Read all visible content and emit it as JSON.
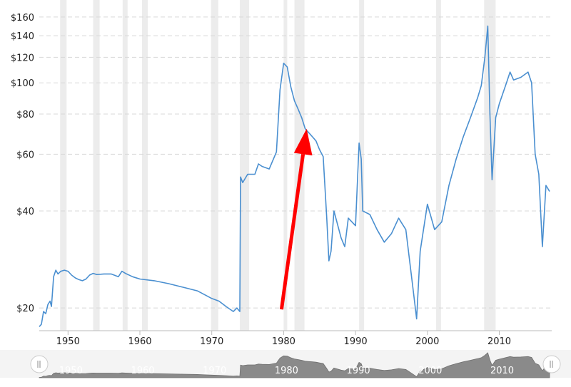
{
  "chart_data": {
    "type": "line",
    "title": "",
    "xlabel": "",
    "ylabel": "",
    "yscale": "log",
    "ylim": [
      17,
      170
    ],
    "xlim": [
      1946,
      2017.3
    ],
    "y_ticks": [
      {
        "value": 20,
        "label": "$20"
      },
      {
        "value": 40,
        "label": "$40"
      },
      {
        "value": 60,
        "label": "$60"
      },
      {
        "value": 80,
        "label": "$80"
      },
      {
        "value": 100,
        "label": "$100"
      },
      {
        "value": 120,
        "label": "$120"
      },
      {
        "value": 140,
        "label": "$140"
      },
      {
        "value": 160,
        "label": "$160"
      }
    ],
    "x_ticks": [
      {
        "value": 1950,
        "label": "1950"
      },
      {
        "value": 1960,
        "label": "1960"
      },
      {
        "value": 1970,
        "label": "1970"
      },
      {
        "value": 1980,
        "label": "1980"
      },
      {
        "value": 1990,
        "label": "1990"
      },
      {
        "value": 2000,
        "label": "2000"
      },
      {
        "value": 2010,
        "label": "2010"
      }
    ],
    "recessions": [
      [
        1948.9,
        1949.8
      ],
      [
        1953.5,
        1954.4
      ],
      [
        1957.6,
        1958.3
      ],
      [
        1960.3,
        1961.1
      ],
      [
        1969.9,
        1970.9
      ],
      [
        1973.9,
        1975.2
      ],
      [
        1980.0,
        1980.5
      ],
      [
        1981.5,
        1982.9
      ],
      [
        1990.5,
        1991.2
      ],
      [
        2001.2,
        2001.9
      ],
      [
        2007.9,
        2009.5
      ]
    ],
    "series": [
      {
        "color": "#4a8fd0",
        "x": [
          1946.0,
          1946.3,
          1946.6,
          1946.9,
          1947.2,
          1947.5,
          1947.7,
          1948.0,
          1948.3,
          1948.6,
          1949.0,
          1949.5,
          1950.0,
          1950.5,
          1951.0,
          1951.5,
          1952.0,
          1952.5,
          1953.0,
          1953.5,
          1954.0,
          1955.0,
          1956.0,
          1957.0,
          1957.5,
          1958.0,
          1959.0,
          1960.0,
          1962.0,
          1964.0,
          1966.0,
          1968.0,
          1969.0,
          1970.0,
          1971.0,
          1972.0,
          1973.0,
          1973.5,
          1973.9,
          1974.0,
          1974.3,
          1975.0,
          1976.0,
          1976.5,
          1977.0,
          1978.0,
          1979.0,
          1979.5,
          1980.0,
          1980.5,
          1981.0,
          1981.5,
          1982.0,
          1982.5,
          1983.0,
          1983.5,
          1984.0,
          1984.5,
          1985.0,
          1985.5,
          1986.0,
          1986.3,
          1986.6,
          1987.0,
          1988.0,
          1988.5,
          1989.0,
          1990.0,
          1990.5,
          1990.8,
          1991.0,
          1992.0,
          1993.0,
          1994.0,
          1995.0,
          1996.0,
          1997.0,
          1998.0,
          1998.5,
          1999.0,
          2000.0,
          2001.0,
          2002.0,
          2003.0,
          2004.0,
          2005.0,
          2006.0,
          2007.0,
          2007.5,
          2008.0,
          2008.4,
          2008.7,
          2009.0,
          2009.5,
          2010.0,
          2011.0,
          2011.5,
          2012.0,
          2013.0,
          2014.0,
          2014.5,
          2015.0,
          2015.5,
          2016.0,
          2016.5,
          2017.0
        ],
        "values": [
          17.5,
          17.8,
          19.5,
          19.2,
          20.5,
          21.0,
          20.2,
          25.0,
          26.2,
          25.5,
          26.0,
          26.2,
          26.0,
          25.3,
          24.8,
          24.5,
          24.3,
          24.6,
          25.3,
          25.6,
          25.4,
          25.5,
          25.5,
          25.0,
          26.0,
          25.6,
          25.0,
          24.6,
          24.3,
          23.8,
          23.2,
          22.6,
          22.0,
          21.4,
          21.0,
          20.2,
          19.5,
          20.0,
          19.5,
          51.0,
          49.0,
          52.0,
          52.0,
          56.0,
          55.0,
          54.0,
          61.0,
          95.0,
          115.0,
          112.0,
          97.0,
          88.0,
          83.0,
          78.0,
          72.0,
          70.0,
          68.0,
          66.0,
          62.0,
          59.0,
          38.0,
          28.0,
          30.0,
          40.0,
          33.0,
          31.0,
          38.0,
          36.0,
          65.0,
          58.0,
          40.0,
          39.0,
          35.0,
          32.0,
          34.0,
          38.0,
          35.0,
          23.0,
          18.5,
          30.0,
          42.0,
          35.0,
          37.0,
          48.0,
          58.0,
          68.0,
          78.0,
          90.0,
          98.0,
          120.0,
          150.0,
          80.0,
          50.0,
          78.0,
          86.0,
          100.0,
          108.0,
          102.0,
          104.0,
          108.0,
          100.0,
          60.0,
          52.0,
          31.0,
          48.0,
          46.0
        ]
      }
    ],
    "annotations": [
      {
        "type": "arrow",
        "color": "#ff0000",
        "from": [
          1979.7,
          19.8
        ],
        "to": [
          1983.2,
          72.0
        ]
      }
    ],
    "navigator": {
      "x_ticks": [
        {
          "value": 1950,
          "label": "1950"
        },
        {
          "value": 1960,
          "label": "1960"
        },
        {
          "value": 1970,
          "label": "1970"
        },
        {
          "value": 1980,
          "label": "1980"
        },
        {
          "value": 1990,
          "label": "1990"
        },
        {
          "value": 2000,
          "label": "2000"
        },
        {
          "value": 2010,
          "label": "2010"
        }
      ],
      "left_handle_icon": "drag-handle-icon",
      "right_handle_icon": "drag-handle-icon"
    },
    "grid": true,
    "legend": "none"
  }
}
